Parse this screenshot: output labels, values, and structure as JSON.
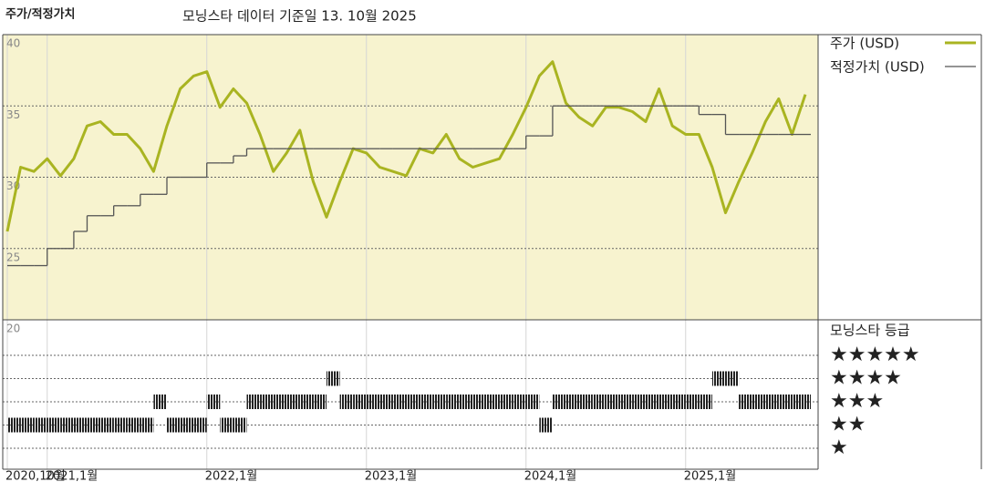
{
  "chart_data": [
    {
      "type": "line",
      "title": "주가/적정가치",
      "subtitle": "모닝스타 데이터 기준일 13. 10월 2025",
      "x": [
        "2020-10",
        "2020-11",
        "2020-12",
        "2021-01",
        "2021-02",
        "2021-03",
        "2021-04",
        "2021-05",
        "2021-06",
        "2021-07",
        "2021-08",
        "2021-09",
        "2021-10",
        "2021-11",
        "2021-12",
        "2022-01",
        "2022-02",
        "2022-03",
        "2022-04",
        "2022-05",
        "2022-06",
        "2022-07",
        "2022-08",
        "2022-09",
        "2022-10",
        "2022-11",
        "2022-12",
        "2023-01",
        "2023-02",
        "2023-03",
        "2023-04",
        "2023-05",
        "2023-06",
        "2023-07",
        "2023-08",
        "2023-09",
        "2023-10",
        "2023-11",
        "2023-12",
        "2024-01",
        "2024-02",
        "2024-03",
        "2024-04",
        "2024-05",
        "2024-06",
        "2024-07",
        "2024-08",
        "2024-09",
        "2024-10",
        "2024-11",
        "2024-12",
        "2025-01",
        "2025-02",
        "2025-03",
        "2025-04",
        "2025-05",
        "2025-06",
        "2025-07",
        "2025-08",
        "2025-09",
        "2025-10"
      ],
      "series": [
        {
          "name": "주가 (USD)",
          "color": "#a9b421",
          "values": [
            26.2,
            30.7,
            30.4,
            31.3,
            30.1,
            31.3,
            33.6,
            33.9,
            33,
            33,
            32,
            30.4,
            33.6,
            36.2,
            37.1,
            37.4,
            34.9,
            36.2,
            35.2,
            33,
            30.4,
            31.7,
            33.3,
            29.7,
            27.2,
            29.7,
            32,
            31.7,
            30.7,
            30.4,
            30.1,
            32,
            31.7,
            33,
            31.3,
            30.7,
            31,
            31.3,
            33,
            34.9,
            37.1,
            38.1,
            35.2,
            34.2,
            33.6,
            34.9,
            34.9,
            34.6,
            33.9,
            36.2,
            33.6,
            33,
            33,
            30.7,
            27.5,
            29.7,
            31.7,
            33.9,
            35.5,
            33,
            35.8
          ]
        },
        {
          "name": "적정가치 (USD)",
          "color": "#555555",
          "step": true,
          "values": [
            23.8,
            23.8,
            23.8,
            25,
            25,
            26.2,
            27.3,
            27.3,
            28,
            28,
            28.8,
            28.8,
            30,
            30,
            30,
            31,
            31,
            31.5,
            32,
            32,
            32,
            32,
            32,
            32,
            32,
            32,
            32,
            32,
            32,
            32,
            32,
            32,
            32,
            32,
            32,
            32,
            32,
            32,
            32,
            32.9,
            32.9,
            35,
            35,
            35,
            35,
            35,
            35,
            35,
            35,
            35,
            35,
            35,
            34.4,
            34.4,
            33,
            33,
            33,
            33,
            33,
            33,
            33
          ]
        }
      ],
      "ylim": [
        20,
        40
      ],
      "yticks": [
        20,
        25,
        30,
        35,
        40
      ],
      "xticks": [
        {
          "value": "2020-10",
          "label": "2020,10월"
        },
        {
          "value": "2021-01",
          "label": "2021,1월"
        },
        {
          "value": "2022-01",
          "label": "2022,1월"
        },
        {
          "value": "2023-01",
          "label": "2023,1월"
        },
        {
          "value": "2024-01",
          "label": "2024,1월"
        },
        {
          "value": "2025-01",
          "label": "2025,1월"
        }
      ],
      "grid": true,
      "background": "#f7f3cf"
    },
    {
      "type": "rating",
      "title": "모닝스타 등급",
      "x": [
        "2020-10",
        "2020-11",
        "2020-12",
        "2021-01",
        "2021-02",
        "2021-03",
        "2021-04",
        "2021-05",
        "2021-06",
        "2021-07",
        "2021-08",
        "2021-09",
        "2021-10",
        "2021-11",
        "2021-12",
        "2022-01",
        "2022-02",
        "2022-03",
        "2022-04",
        "2022-05",
        "2022-06",
        "2022-07",
        "2022-08",
        "2022-09",
        "2022-10",
        "2022-11",
        "2022-12",
        "2023-01",
        "2023-02",
        "2023-03",
        "2023-04",
        "2023-05",
        "2023-06",
        "2023-07",
        "2023-08",
        "2023-09",
        "2023-10",
        "2023-11",
        "2023-12",
        "2024-01",
        "2024-02",
        "2024-03",
        "2024-04",
        "2024-05",
        "2024-06",
        "2024-07",
        "2024-08",
        "2024-09",
        "2024-10",
        "2024-11",
        "2024-12",
        "2025-01",
        "2025-02",
        "2025-03",
        "2025-04",
        "2025-05",
        "2025-06",
        "2025-07",
        "2025-08",
        "2025-09",
        "2025-10"
      ],
      "values": [
        2,
        2,
        2,
        2,
        2,
        2,
        2,
        2,
        2,
        2,
        2,
        3,
        2,
        2,
        2,
        3,
        2,
        2,
        3,
        3,
        3,
        3,
        3,
        3,
        4,
        3,
        3,
        3,
        3,
        3,
        3,
        3,
        3,
        3,
        3,
        3,
        3,
        3,
        3,
        3,
        2,
        3,
        3,
        3,
        3,
        3,
        3,
        3,
        3,
        3,
        3,
        3,
        3,
        4,
        4,
        3,
        3,
        3,
        3,
        3,
        3
      ],
      "ylim": [
        1,
        5
      ],
      "yticks": [
        {
          "value": 5,
          "label": "★★★★★"
        },
        {
          "value": 4,
          "label": "★★★★"
        },
        {
          "value": 3,
          "label": "★★★"
        },
        {
          "value": 2,
          "label": "★★"
        },
        {
          "value": 1,
          "label": "★"
        }
      ],
      "color": "#222222"
    }
  ]
}
